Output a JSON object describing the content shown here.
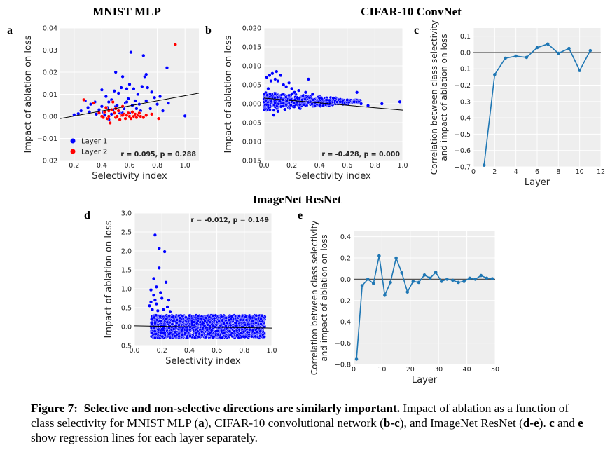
{
  "figure": {
    "section_titles": [
      "MNIST MLP",
      "CIFAR-10 ConvNet",
      "ImageNet ResNet"
    ],
    "panel_letters": [
      "a",
      "b",
      "c",
      "d",
      "e"
    ]
  },
  "caption": {
    "label": "Figure 7:",
    "bold_title": "Selective and non-selective directions are similarly important.",
    "body_1": " Impact of ablation as a function of class selectivity for MNIST MLP (",
    "a": "a",
    "body_2": "), CIFAR-10 convolutional network (",
    "bc": "b-c",
    "body_3": "), and ImageNet ResNet (",
    "de": "d-e",
    "body_4": "). ",
    "c": "c",
    "body_5": " and ",
    "e": "e",
    "body_6": " show regression lines for each layer separately."
  },
  "colors": {
    "panel_bg": "#eeeeee",
    "grid": "#ffffff",
    "layer1": "#0000ff",
    "layer2": "#ff0000",
    "line": "#1f77b4",
    "fit": "#000000"
  },
  "chart_data": [
    {
      "id": "a",
      "type": "scatter",
      "title": "MNIST MLP",
      "xlabel": "Selectivity index",
      "ylabel": "Impact of ablation on loss",
      "xlim": [
        0.1,
        1.1
      ],
      "ylim": [
        -0.02,
        0.04
      ],
      "xticks": [
        0.2,
        0.4,
        0.6,
        0.8,
        1.0
      ],
      "yticks": [
        -0.02,
        -0.01,
        0.0,
        0.01,
        0.02,
        0.03,
        0.04
      ],
      "xtick_labels": [
        "0.2",
        "0.4",
        "0.6",
        "0.8",
        "1.0"
      ],
      "ytick_labels": [
        "−0.02",
        "−0.01",
        "0.00",
        "0.01",
        "0.02",
        "0.03",
        "0.04"
      ],
      "annotation": "r = 0.095, p = 0.288",
      "legend": {
        "position": "lower-left",
        "entries": [
          "Layer 1",
          "Layer 2"
        ]
      },
      "regression": [
        [
          0.1,
          -0.001
        ],
        [
          1.1,
          0.0105
        ]
      ],
      "series": [
        {
          "name": "Layer 1",
          "color": "#0000ff",
          "points": [
            [
              0.2,
              0.0007
            ],
            [
              0.23,
              0.0012
            ],
            [
              0.25,
              0.0025
            ],
            [
              0.28,
              0.007
            ],
            [
              0.3,
              0.004
            ],
            [
              0.31,
              0.002
            ],
            [
              0.32,
              0.0055
            ],
            [
              0.35,
              0.0065
            ],
            [
              0.36,
              0.001
            ],
            [
              0.38,
              0.003
            ],
            [
              0.4,
              0.0045
            ],
            [
              0.4,
              0.012
            ],
            [
              0.41,
              0.002
            ],
            [
              0.42,
              0.0005
            ],
            [
              0.43,
              0.009
            ],
            [
              0.44,
              0.004
            ],
            [
              0.45,
              0.0065
            ],
            [
              0.45,
              -0.0015
            ],
            [
              0.47,
              0.001
            ],
            [
              0.47,
              0.0075
            ],
            [
              0.48,
              0.003
            ],
            [
              0.49,
              0.0115
            ],
            [
              0.5,
              0.02
            ],
            [
              0.5,
              0.0045
            ],
            [
              0.51,
              0.005
            ],
            [
              0.52,
              0.0105
            ],
            [
              0.53,
              0.0015
            ],
            [
              0.54,
              0.013
            ],
            [
              0.55,
              0.0015
            ],
            [
              0.55,
              0.018
            ],
            [
              0.56,
              0.0035
            ],
            [
              0.57,
              0.006
            ],
            [
              0.58,
              0.0125
            ],
            [
              0.59,
              0.008
            ],
            [
              0.6,
              0.0145
            ],
            [
              0.6,
              0.0015
            ],
            [
              0.61,
              0.029
            ],
            [
              0.62,
              0.005
            ],
            [
              0.63,
              0.0125
            ],
            [
              0.64,
              0.007
            ],
            [
              0.65,
              0.0035
            ],
            [
              0.66,
              0.01
            ],
            [
              0.67,
              0.0055
            ],
            [
              0.68,
              0.0025
            ],
            [
              0.69,
              0.0135
            ],
            [
              0.7,
              0.0275
            ],
            [
              0.71,
              0.018
            ],
            [
              0.72,
              0.019
            ],
            [
              0.72,
              0.007
            ],
            [
              0.73,
              0.013
            ],
            [
              0.75,
              0.0035
            ],
            [
              0.76,
              0.011
            ],
            [
              0.78,
              0.0085
            ],
            [
              0.8,
              0.0055
            ],
            [
              0.82,
              0.009
            ],
            [
              0.84,
              0.0025
            ],
            [
              0.87,
              0.022
            ],
            [
              0.88,
              0.006
            ],
            [
              1.0,
              0.0002
            ],
            [
              0.58,
              0.0065
            ]
          ]
        },
        {
          "name": "Layer 2",
          "color": "#ff0000",
          "points": [
            [
              0.27,
              0.0075
            ],
            [
              0.34,
              0.006
            ],
            [
              0.38,
              0.0015
            ],
            [
              0.4,
              0.0
            ],
            [
              0.41,
              -0.0005
            ],
            [
              0.42,
              0.002
            ],
            [
              0.43,
              0.004
            ],
            [
              0.44,
              -0.001
            ],
            [
              0.45,
              0.0
            ],
            [
              0.46,
              -0.003
            ],
            [
              0.47,
              0.003
            ],
            [
              0.48,
              0.0065
            ],
            [
              0.49,
              0.0015
            ],
            [
              0.5,
              -0.0005
            ],
            [
              0.51,
              0.0
            ],
            [
              0.52,
              0.0025
            ],
            [
              0.53,
              -0.0015
            ],
            [
              0.54,
              0.0005
            ],
            [
              0.55,
              0.0045
            ],
            [
              0.56,
              0.001
            ],
            [
              0.57,
              -0.001
            ],
            [
              0.58,
              0.0005
            ],
            [
              0.59,
              0.0015
            ],
            [
              0.6,
              0.0
            ],
            [
              0.61,
              -0.001
            ],
            [
              0.62,
              0.002
            ],
            [
              0.63,
              0.0
            ],
            [
              0.64,
              0.001
            ],
            [
              0.65,
              -0.0005
            ],
            [
              0.66,
              0.0005
            ],
            [
              0.67,
              0.0015
            ],
            [
              0.68,
              0.0
            ],
            [
              0.7,
              -0.0005
            ],
            [
              0.72,
              0.0005
            ],
            [
              0.76,
              0.001
            ],
            [
              0.81,
              -0.001
            ],
            [
              0.93,
              0.0325
            ],
            [
              0.45,
              0.0025
            ],
            [
              0.5,
              0.0035
            ],
            [
              0.55,
              0.0005
            ]
          ]
        }
      ]
    },
    {
      "id": "b",
      "type": "scatter",
      "title": "CIFAR-10 ConvNet",
      "xlabel": "Selectivity index",
      "ylabel": "Impact of ablation on loss",
      "xlim": [
        0.0,
        1.0
      ],
      "ylim": [
        -0.015,
        0.02
      ],
      "xticks": [
        0.0,
        0.2,
        0.4,
        0.6,
        0.8,
        1.0
      ],
      "yticks": [
        -0.015,
        -0.01,
        -0.005,
        0.0,
        0.005,
        0.01,
        0.015,
        0.02
      ],
      "xtick_labels": [
        "0.0",
        "0.2",
        "0.4",
        "0.6",
        "0.8",
        "1.0"
      ],
      "ytick_labels": [
        "−0.015",
        "−0.010",
        "−0.005",
        "0.000",
        "0.005",
        "0.010",
        "0.015",
        "0.020"
      ],
      "annotation": "r = -0.428, p = 0.000",
      "regression": [
        [
          0.0,
          0.0015
        ],
        [
          1.0,
          -0.0017
        ]
      ],
      "series": [
        {
          "color": "#0000ff",
          "points": [
            [
              0.02,
              0.007
            ],
            [
              0.03,
              0.004
            ],
            [
              0.04,
              0.0075
            ],
            [
              0.05,
              0.006
            ],
            [
              0.06,
              0.008
            ],
            [
              0.08,
              0.0065
            ],
            [
              0.09,
              0.0085
            ],
            [
              0.1,
              0.006
            ],
            [
              0.12,
              0.0075
            ],
            [
              0.14,
              0.005
            ],
            [
              0.16,
              0.0045
            ],
            [
              0.18,
              0.0055
            ],
            [
              0.2,
              0.004
            ],
            [
              0.22,
              0.003
            ],
            [
              0.25,
              0.0035
            ],
            [
              0.28,
              0.002
            ],
            [
              0.3,
              0.003
            ],
            [
              0.32,
              0.0065
            ],
            [
              0.35,
              0.0025
            ],
            [
              0.4,
              0.0015
            ],
            [
              0.45,
              0.001
            ],
            [
              0.5,
              0.0015
            ],
            [
              0.55,
              0.0005
            ],
            [
              0.6,
              0.001
            ],
            [
              0.65,
              0.0005
            ],
            [
              0.67,
              0.003
            ],
            [
              0.7,
              0.0
            ],
            [
              0.75,
              -0.0005
            ],
            [
              0.85,
              0.0
            ],
            [
              0.98,
              0.0005
            ],
            [
              0.07,
              -0.003
            ],
            [
              0.1,
              -0.002
            ],
            [
              0.15,
              -0.0015
            ]
          ]
        }
      ],
      "dense_cloud": {
        "x_range": [
          0.0,
          0.7
        ],
        "y_center": 0.0,
        "y_spread_start": 0.0045,
        "y_spread_end": 0.0008,
        "count": 700
      }
    },
    {
      "id": "c",
      "type": "line",
      "xlabel": "Layer",
      "ylabel": "Correlation between class selectivity and impact of ablation on loss",
      "ylabel_lines": [
        "Correlation between class selectivity",
        "and impact of ablation on loss"
      ],
      "xlim": [
        0,
        12
      ],
      "ylim": [
        -0.7,
        0.15
      ],
      "xticks": [
        0,
        2,
        4,
        6,
        8,
        10,
        12
      ],
      "yticks": [
        -0.7,
        -0.6,
        -0.5,
        -0.4,
        -0.3,
        -0.2,
        -0.1,
        0.0,
        0.1
      ],
      "xtick_labels": [
        "0",
        "2",
        "4",
        "6",
        "8",
        "10",
        "12"
      ],
      "ytick_labels": [
        "−0.7",
        "−0.6",
        "−0.5",
        "−0.4",
        "−0.3",
        "−0.2",
        "−0.1",
        "0.0",
        "0.1"
      ],
      "x": [
        1,
        2,
        3,
        4,
        5,
        6,
        7,
        8,
        9,
        10,
        11
      ],
      "y": [
        -0.69,
        -0.135,
        -0.035,
        -0.022,
        -0.03,
        0.03,
        0.052,
        -0.005,
        0.025,
        -0.11,
        0.012
      ]
    },
    {
      "id": "d",
      "type": "scatter",
      "title": "ImageNet ResNet",
      "xlabel": "Selectivity index",
      "ylabel": "Impact of ablation on loss",
      "xlim": [
        0.0,
        1.0
      ],
      "ylim": [
        -0.5,
        3.0
      ],
      "xticks": [
        0.0,
        0.2,
        0.4,
        0.6,
        0.8,
        1.0
      ],
      "yticks": [
        -0.5,
        0.0,
        0.5,
        1.0,
        1.5,
        2.0,
        2.5,
        3.0
      ],
      "xtick_labels": [
        "0.0",
        "0.2",
        "0.4",
        "0.6",
        "0.8",
        "1.0"
      ],
      "ytick_labels": [
        "−0.5",
        "0.0",
        "0.5",
        "1.0",
        "1.5",
        "2.0",
        "2.5",
        "3.0"
      ],
      "annotation": "r = -0.012, p = 0.149",
      "regression": [
        [
          0.0,
          0.02
        ],
        [
          1.0,
          -0.04
        ]
      ],
      "series": [
        {
          "color": "#0000ff",
          "points": [
            [
              0.15,
              2.42
            ],
            [
              0.18,
              2.07
            ],
            [
              0.22,
              1.98
            ],
            [
              0.18,
              1.55
            ],
            [
              0.14,
              1.27
            ],
            [
              0.23,
              1.17
            ],
            [
              0.16,
              1.05
            ],
            [
              0.12,
              0.97
            ],
            [
              0.14,
              0.83
            ],
            [
              0.2,
              0.75
            ],
            [
              0.25,
              0.7
            ],
            [
              0.12,
              0.65
            ],
            [
              0.16,
              0.6
            ],
            [
              0.24,
              0.52
            ],
            [
              0.13,
              0.45
            ],
            [
              0.17,
              0.42
            ],
            [
              0.21,
              0.45
            ],
            [
              0.26,
              0.4
            ],
            [
              0.11,
              0.55
            ],
            [
              0.19,
              0.9
            ],
            [
              0.15,
              0.7
            ]
          ]
        }
      ],
      "dense_cloud": {
        "x_range": [
          0.12,
          0.95
        ],
        "y_center": 0.0,
        "y_low": -0.3,
        "y_high": 0.3,
        "count": 1600
      }
    },
    {
      "id": "e",
      "type": "line",
      "xlabel": "Layer",
      "ylabel": "Correlation between class selectivity and impact of ablation on loss",
      "ylabel_lines": [
        "Correlation between class selectivity",
        "and impact of ablation on loss"
      ],
      "xlim": [
        0,
        50
      ],
      "ylim": [
        -0.8,
        0.45
      ],
      "xticks": [
        0,
        10,
        20,
        30,
        40,
        50
      ],
      "yticks": [
        -0.8,
        -0.6,
        -0.4,
        -0.2,
        0.0,
        0.2,
        0.4
      ],
      "xtick_labels": [
        "0",
        "10",
        "20",
        "30",
        "40",
        "50"
      ],
      "ytick_labels": [
        "−0.8",
        "−0.6",
        "−0.4",
        "−0.2",
        "0.0",
        "0.2",
        "0.4"
      ],
      "x": [
        1,
        3,
        5,
        7,
        9,
        11,
        13,
        15,
        17,
        19,
        21,
        23,
        25,
        27,
        29,
        31,
        33,
        35,
        37,
        39,
        41,
        43,
        45,
        47,
        49
      ],
      "y": [
        -0.75,
        -0.06,
        0.0,
        -0.04,
        0.22,
        -0.15,
        -0.03,
        0.2,
        0.06,
        -0.12,
        -0.02,
        -0.03,
        0.04,
        0.01,
        0.065,
        -0.02,
        0.0,
        -0.01,
        -0.03,
        -0.02,
        0.01,
        0.0,
        0.035,
        0.01,
        0.005
      ]
    }
  ]
}
